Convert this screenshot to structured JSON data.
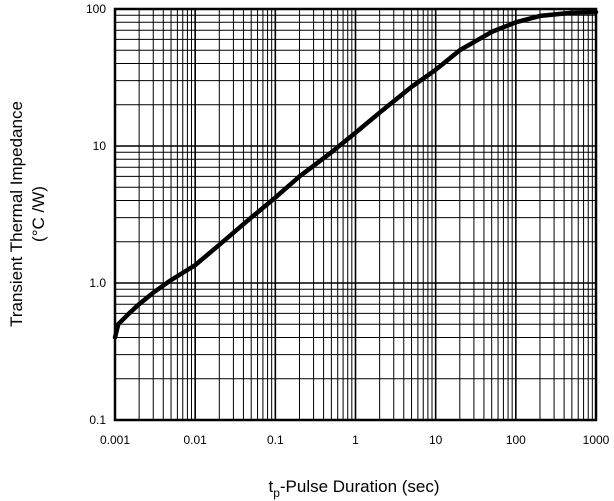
{
  "chart_data": {
    "type": "line",
    "title": "",
    "xscale": "log",
    "yscale": "log",
    "xlim": [
      0.001,
      1000
    ],
    "ylim": [
      0.1,
      100
    ],
    "grid": true,
    "xlabel": {
      "main": "t",
      "sub": "p",
      "rest": "-Pulse Duration (sec)"
    },
    "ylabel": {
      "line1": "Transient Thermal Impedance",
      "line2": "(°C /W)"
    },
    "xticks": [
      {
        "value": 0.001,
        "label": "0.001"
      },
      {
        "value": 0.01,
        "label": "0.01"
      },
      {
        "value": 0.1,
        "label": "0.1"
      },
      {
        "value": 1,
        "label": "1"
      },
      {
        "value": 10,
        "label": "10"
      },
      {
        "value": 100,
        "label": "100"
      },
      {
        "value": 1000,
        "label": "1000"
      }
    ],
    "yticks": [
      {
        "value": 0.1,
        "label": "0.1"
      },
      {
        "value": 1,
        "label": "1.0"
      },
      {
        "value": 10,
        "label": "10"
      },
      {
        "value": 100,
        "label": "100"
      }
    ],
    "series": [
      {
        "color": "#000000",
        "points": [
          [
            0.001,
            0.4
          ],
          [
            0.0011,
            0.5
          ],
          [
            0.0015,
            0.6
          ],
          [
            0.002,
            0.7
          ],
          [
            0.003,
            0.85
          ],
          [
            0.005,
            1.05
          ],
          [
            0.01,
            1.35
          ],
          [
            0.02,
            1.9
          ],
          [
            0.05,
            3.0
          ],
          [
            0.1,
            4.2
          ],
          [
            0.2,
            6.0
          ],
          [
            0.5,
            9.0
          ],
          [
            1,
            12.5
          ],
          [
            2,
            17.5
          ],
          [
            5,
            27
          ],
          [
            10,
            36
          ],
          [
            20,
            50
          ],
          [
            50,
            68
          ],
          [
            100,
            80
          ],
          [
            200,
            89
          ],
          [
            500,
            94
          ],
          [
            1000,
            95
          ]
        ]
      }
    ]
  }
}
